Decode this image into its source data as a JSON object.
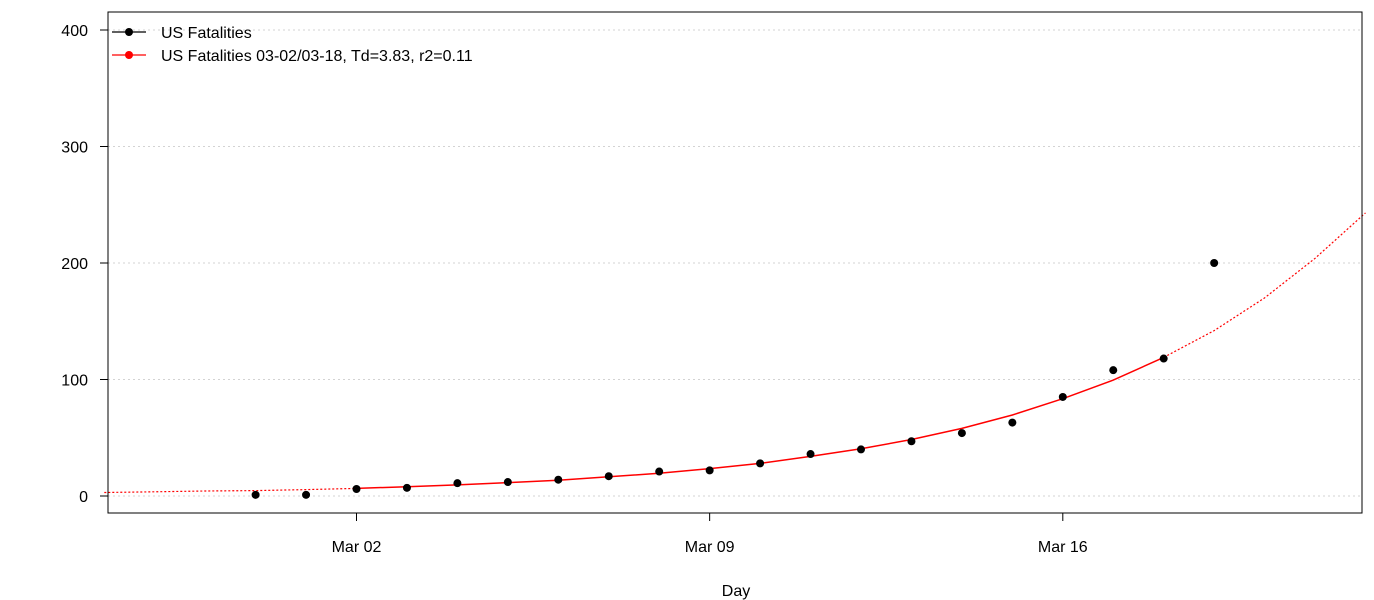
{
  "chart_data": {
    "type": "line",
    "title": "",
    "xlabel": "Day",
    "ylabel": "",
    "x_ticks": [
      {
        "date": "2020-03-02",
        "label": "Mar 02"
      },
      {
        "date": "2020-03-09",
        "label": "Mar 09"
      },
      {
        "date": "2020-03-16",
        "label": "Mar 16"
      }
    ],
    "y_ticks": [
      0,
      100,
      200,
      300,
      400
    ],
    "xlim": [
      "2020-02-26",
      "2020-03-22"
    ],
    "ylim": [
      0,
      400
    ],
    "grid": "horizontal dotted",
    "legend_position": "top-left",
    "series": [
      {
        "name": "US Fatalities",
        "style": "points",
        "color": "#000000",
        "x": [
          "2020-02-29",
          "2020-03-01",
          "2020-03-02",
          "2020-03-03",
          "2020-03-04",
          "2020-03-05",
          "2020-03-06",
          "2020-03-07",
          "2020-03-08",
          "2020-03-09",
          "2020-03-10",
          "2020-03-11",
          "2020-03-12",
          "2020-03-13",
          "2020-03-14",
          "2020-03-15",
          "2020-03-16",
          "2020-03-17",
          "2020-03-18",
          "2020-03-19"
        ],
        "values": [
          1,
          1,
          6,
          7,
          11,
          12,
          14,
          17,
          21,
          22,
          28,
          36,
          40,
          47,
          54,
          63,
          85,
          108,
          118,
          200
        ]
      },
      {
        "name": "US Fatalities 03-02/03-18, Td=3.83, r2=0.11",
        "style": "fit",
        "color": "#ff0000",
        "fit_x": [
          "2020-03-02",
          "2020-03-03",
          "2020-03-04",
          "2020-03-05",
          "2020-03-06",
          "2020-03-07",
          "2020-03-08",
          "2020-03-09",
          "2020-03-10",
          "2020-03-11",
          "2020-03-12",
          "2020-03-13",
          "2020-03-14",
          "2020-03-15",
          "2020-03-16",
          "2020-03-17",
          "2020-03-18"
        ],
        "fit_values": [
          6.5,
          8.0,
          9.5,
          11.5,
          13.5,
          16.5,
          19.5,
          23.5,
          28.0,
          34.0,
          40.5,
          48.5,
          58.0,
          69.5,
          83.5,
          99.5,
          119.0
        ],
        "projection_x": [
          "2020-02-26",
          "2020-02-27",
          "2020-02-28",
          "2020-02-29",
          "2020-03-01",
          "2020-03-02",
          "2020-03-18",
          "2020-03-19",
          "2020-03-20",
          "2020-03-21",
          "2020-03-22"
        ],
        "projection_values": [
          3.0,
          3.6,
          4.3,
          4.6,
          5.5,
          6.5,
          119.0,
          142.0,
          170.0,
          204.0,
          243.0
        ]
      }
    ]
  }
}
